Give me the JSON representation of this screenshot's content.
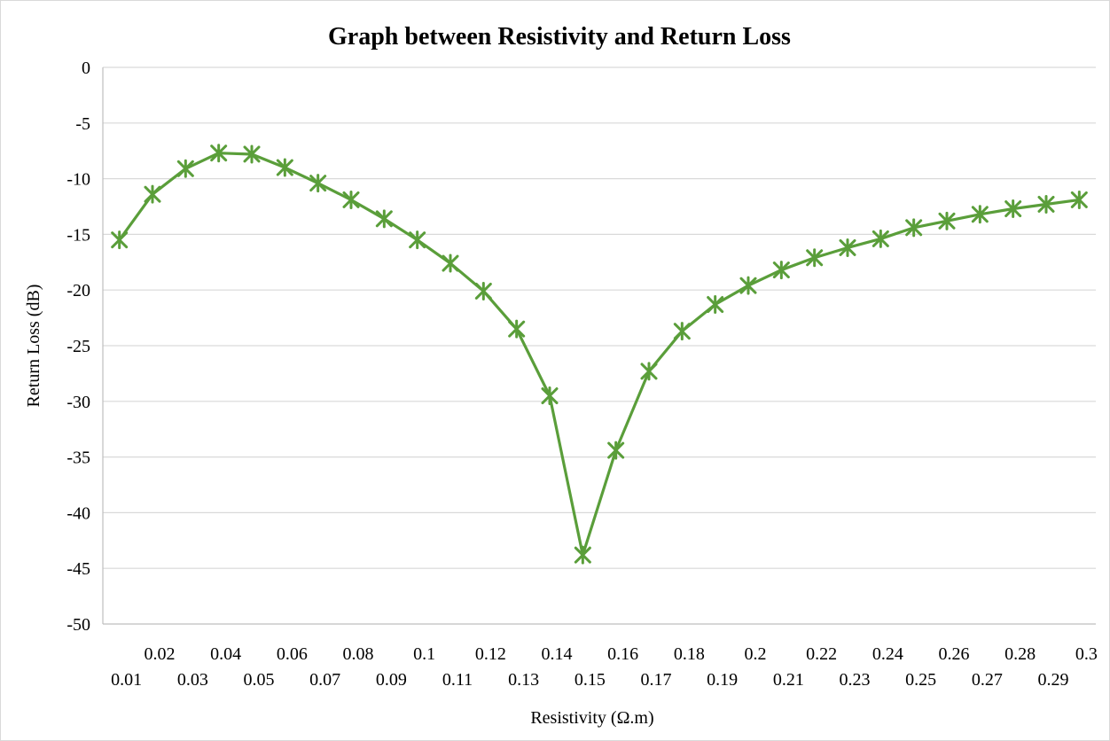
{
  "chart_data": {
    "type": "line",
    "title": "Graph between Resistivity and Return Loss",
    "xlabel": "Resistivity (Ω.m)",
    "ylabel": "Return Loss (dB)",
    "ylim": [
      -50,
      0
    ],
    "yticks": [
      0,
      -5,
      -10,
      -15,
      -20,
      -25,
      -30,
      -35,
      -40,
      -45,
      -50
    ],
    "categories": [
      "0.01",
      "0.02",
      "0.03",
      "0.04",
      "0.05",
      "0.06",
      "0.07",
      "0.08",
      "0.09",
      "0.1",
      "0.11",
      "0.12",
      "0.13",
      "0.14",
      "0.15",
      "0.16",
      "0.17",
      "0.18",
      "0.19",
      "0.2",
      "0.21",
      "0.22",
      "0.23",
      "0.24",
      "0.25",
      "0.26",
      "0.27",
      "0.28",
      "0.29",
      "0.3"
    ],
    "series": [
      {
        "values": [
          -15.5,
          -11.4,
          -9.1,
          -7.7,
          -7.8,
          -9.0,
          -10.4,
          -11.9,
          -13.6,
          -15.5,
          -17.6,
          -20.1,
          -23.5,
          -29.5,
          -43.8,
          -34.4,
          -27.3,
          -23.7,
          -21.3,
          -19.6,
          -18.2,
          -17.1,
          -16.2,
          -15.4,
          -14.4,
          -13.8,
          -13.2,
          -12.7,
          -12.3,
          -11.9
        ],
        "marker": "x-star"
      }
    ],
    "grid": true,
    "colors": {
      "line": "#5a9e3a",
      "grid": "#d9d9d9",
      "axis": "#bfbfbf"
    }
  }
}
